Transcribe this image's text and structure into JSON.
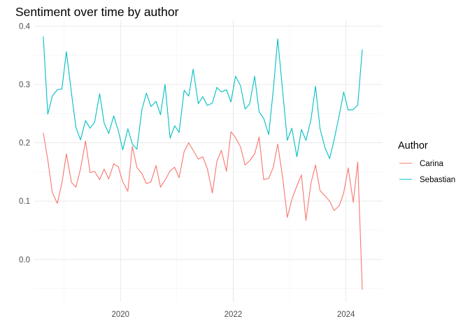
{
  "chart_data": {
    "type": "line",
    "title": "Sentiment over time by author",
    "xlabel": "",
    "ylabel": "",
    "x_ticks": [
      "2020",
      "2022",
      "2024"
    ],
    "y_ticks": [
      "0.0",
      "0.1",
      "0.2",
      "0.3",
      "0.4"
    ],
    "xlim": [
      2018.47,
      2024.65
    ],
    "ylim": [
      -0.072,
      0.41
    ],
    "grid": true,
    "legend_title": "Author",
    "legend_position": "right",
    "series": [
      {
        "name": "Carina",
        "color": "#F8766D",
        "x": [
          2018.63,
          2018.71,
          2018.79,
          2018.88,
          2018.96,
          2019.04,
          2019.13,
          2019.21,
          2019.29,
          2019.38,
          2019.46,
          2019.54,
          2019.63,
          2019.71,
          2019.79,
          2019.88,
          2019.96,
          2020.04,
          2020.13,
          2020.21,
          2020.29,
          2020.38,
          2020.46,
          2020.54,
          2020.63,
          2020.71,
          2020.79,
          2020.88,
          2020.96,
          2021.04,
          2021.13,
          2021.21,
          2021.29,
          2021.38,
          2021.46,
          2021.54,
          2021.63,
          2021.71,
          2021.79,
          2021.88,
          2021.96,
          2022.04,
          2022.13,
          2022.21,
          2022.29,
          2022.38,
          2022.46,
          2022.54,
          2022.63,
          2022.71,
          2022.79,
          2022.88,
          2022.96,
          2023.04,
          2023.13,
          2023.21,
          2023.29,
          2023.38,
          2023.46,
          2023.54,
          2023.63,
          2023.71,
          2023.79,
          2023.88,
          2023.96,
          2024.04,
          2024.13,
          2024.21,
          2024.29
        ],
        "y": [
          0.217,
          0.171,
          0.115,
          0.096,
          0.131,
          0.181,
          0.132,
          0.124,
          0.155,
          0.203,
          0.149,
          0.151,
          0.137,
          0.155,
          0.138,
          0.164,
          0.159,
          0.133,
          0.117,
          0.194,
          0.158,
          0.147,
          0.13,
          0.133,
          0.161,
          0.124,
          0.136,
          0.152,
          0.158,
          0.14,
          0.185,
          0.2,
          0.187,
          0.172,
          0.176,
          0.156,
          0.114,
          0.168,
          0.187,
          0.151,
          0.219,
          0.209,
          0.193,
          0.162,
          0.169,
          0.181,
          0.21,
          0.137,
          0.139,
          0.158,
          0.198,
          0.138,
          0.072,
          0.103,
          0.126,
          0.145,
          0.067,
          0.131,
          0.162,
          0.118,
          0.109,
          0.1,
          0.084,
          0.092,
          0.114,
          0.157,
          0.098,
          0.167,
          -0.052
        ]
      },
      {
        "name": "Sebastian",
        "color": "#00BFC4",
        "x": [
          2018.63,
          2018.71,
          2018.79,
          2018.88,
          2018.96,
          2019.04,
          2019.13,
          2019.21,
          2019.29,
          2019.38,
          2019.46,
          2019.54,
          2019.63,
          2019.71,
          2019.79,
          2019.88,
          2019.96,
          2020.04,
          2020.13,
          2020.21,
          2020.29,
          2020.38,
          2020.46,
          2020.54,
          2020.63,
          2020.71,
          2020.79,
          2020.88,
          2020.96,
          2021.04,
          2021.13,
          2021.21,
          2021.29,
          2021.38,
          2021.46,
          2021.54,
          2021.63,
          2021.71,
          2021.79,
          2021.88,
          2021.96,
          2022.04,
          2022.13,
          2022.21,
          2022.29,
          2022.38,
          2022.46,
          2022.54,
          2022.63,
          2022.71,
          2022.79,
          2022.88,
          2022.96,
          2023.04,
          2023.13,
          2023.21,
          2023.29,
          2023.38,
          2023.46,
          2023.54,
          2023.63,
          2023.71,
          2023.79,
          2023.88,
          2023.96,
          2024.04,
          2024.13,
          2024.21,
          2024.29
        ],
        "y": [
          0.382,
          0.249,
          0.28,
          0.291,
          0.292,
          0.356,
          0.285,
          0.226,
          0.205,
          0.238,
          0.225,
          0.235,
          0.284,
          0.234,
          0.216,
          0.246,
          0.221,
          0.188,
          0.224,
          0.198,
          0.189,
          0.257,
          0.285,
          0.262,
          0.271,
          0.248,
          0.3,
          0.208,
          0.229,
          0.218,
          0.29,
          0.28,
          0.326,
          0.267,
          0.279,
          0.264,
          0.268,
          0.295,
          0.287,
          0.291,
          0.27,
          0.314,
          0.298,
          0.258,
          0.266,
          0.314,
          0.253,
          0.242,
          0.214,
          0.29,
          0.378,
          0.285,
          0.204,
          0.225,
          0.176,
          0.223,
          0.204,
          0.24,
          0.297,
          0.224,
          0.191,
          0.173,
          0.205,
          0.247,
          0.287,
          0.256,
          0.257,
          0.265,
          0.36
        ]
      }
    ]
  }
}
